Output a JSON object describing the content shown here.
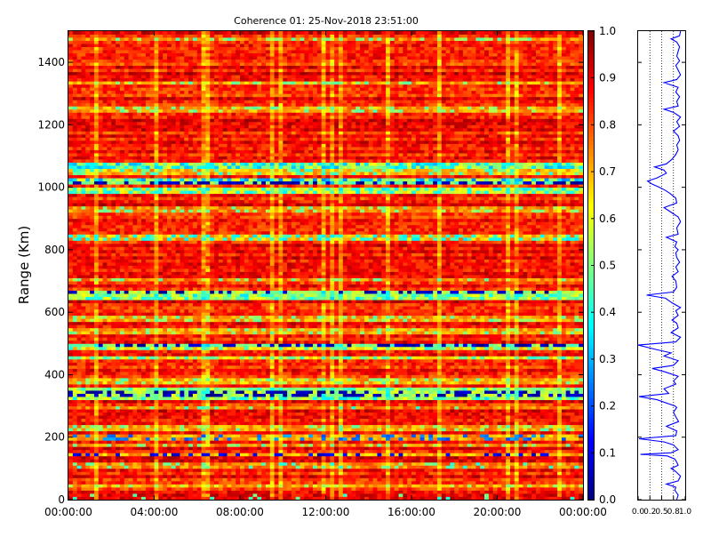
{
  "chart_data": [
    {
      "type": "heatmap",
      "title": "Coherence 01: 25-Nov-2018 23:51:00",
      "xlabel": "",
      "ylabel": "Range (Km)",
      "x_tick_labels": [
        "00:00:00",
        "04:00:00",
        "08:00:00",
        "12:00:00",
        "16:00:00",
        "20:00:00",
        "00:00:00"
      ],
      "xlim": [
        "00:00:00",
        "00:00:00"
      ],
      "ylim": [
        0,
        1500
      ],
      "y_ticks": [
        0,
        200,
        400,
        600,
        800,
        1000,
        1200,
        1400
      ],
      "colorbar": {
        "colormap": "jet",
        "range": [
          0.0,
          1.0
        ],
        "ticks": [
          "0.0",
          "0.1",
          "0.2",
          "0.3",
          "0.4",
          "0.5",
          "0.6",
          "0.7",
          "0.8",
          "0.9",
          "1.0"
        ]
      },
      "grid": false,
      "bands": [
        {
          "range": [
            0,
            15
          ],
          "base": 0.9,
          "dip": 0.45,
          "dip_rate": 0.05
        },
        {
          "range": [
            40,
            50
          ],
          "base": 0.72,
          "dip": 0.55,
          "dip_rate": 0.2
        },
        {
          "range": [
            100,
            115
          ],
          "base": 0.75,
          "dip": 0.45,
          "dip_rate": 0.15
        },
        {
          "range": [
            140,
            150
          ],
          "base": 0.7,
          "dip": 0.1,
          "dip_rate": 0.35
        },
        {
          "range": [
            170,
            180
          ],
          "base": 0.75,
          "dip": 0.5,
          "dip_rate": 0.2
        },
        {
          "range": [
            190,
            205
          ],
          "base": 0.72,
          "dip": 0.25,
          "dip_rate": 0.25
        },
        {
          "range": [
            225,
            235
          ],
          "base": 0.72,
          "dip": 0.5,
          "dip_rate": 0.2
        },
        {
          "range": [
            290,
            300
          ],
          "base": 0.75,
          "dip": 0.45,
          "dip_rate": 0.2
        },
        {
          "range": [
            320,
            330
          ],
          "base": 0.55,
          "dip": 0.4,
          "dip_rate": 0.3
        },
        {
          "range": [
            330,
            345
          ],
          "base": 0.55,
          "dip": 0.05,
          "dip_rate": 0.4
        },
        {
          "range": [
            345,
            355
          ],
          "base": 0.55,
          "dip": 0.45,
          "dip_rate": 0.3
        },
        {
          "range": [
            375,
            385
          ],
          "base": 0.7,
          "dip": 0.5,
          "dip_rate": 0.2
        },
        {
          "range": [
            450,
            460
          ],
          "base": 0.65,
          "dip": 0.45,
          "dip_rate": 0.3
        },
        {
          "range": [
            480,
            490
          ],
          "base": 0.65,
          "dip": 0.45,
          "dip_rate": 0.3
        },
        {
          "range": [
            490,
            500
          ],
          "base": 0.5,
          "dip": 0.05,
          "dip_rate": 0.45
        },
        {
          "range": [
            535,
            545
          ],
          "base": 0.72,
          "dip": 0.5,
          "dip_rate": 0.2
        },
        {
          "range": [
            575,
            585
          ],
          "base": 0.72,
          "dip": 0.5,
          "dip_rate": 0.2
        },
        {
          "range": [
            645,
            655
          ],
          "base": 0.55,
          "dip": 0.4,
          "dip_rate": 0.3
        },
        {
          "range": [
            655,
            665
          ],
          "base": 0.55,
          "dip": 0.05,
          "dip_rate": 0.4
        },
        {
          "range": [
            700,
            710
          ],
          "base": 0.75,
          "dip": 0.5,
          "dip_rate": 0.2
        },
        {
          "range": [
            835,
            845
          ],
          "base": 0.7,
          "dip": 0.4,
          "dip_rate": 0.35
        },
        {
          "range": [
            925,
            935
          ],
          "base": 0.75,
          "dip": 0.5,
          "dip_rate": 0.2
        },
        {
          "range": [
            985,
            1000
          ],
          "base": 0.6,
          "dip": 0.4,
          "dip_rate": 0.35
        },
        {
          "range": [
            1010,
            1020
          ],
          "base": 0.5,
          "dip": 0.05,
          "dip_rate": 0.5
        },
        {
          "range": [
            1020,
            1030
          ],
          "base": 0.55,
          "dip": 0.3,
          "dip_rate": 0.4
        },
        {
          "range": [
            1040,
            1060
          ],
          "base": 0.7,
          "dip": 0.45,
          "dip_rate": 0.25
        },
        {
          "range": [
            1065,
            1075
          ],
          "base": 0.55,
          "dip": 0.35,
          "dip_rate": 0.4
        },
        {
          "range": [
            1245,
            1255
          ],
          "base": 0.72,
          "dip": 0.5,
          "dip_rate": 0.2
        },
        {
          "range": [
            1330,
            1340
          ],
          "base": 0.72,
          "dip": 0.5,
          "dip_rate": 0.2
        },
        {
          "range": [
            1470,
            1480
          ],
          "base": 0.75,
          "dip": 0.5,
          "dip_rate": 0.2
        }
      ],
      "background_level": 0.85
    },
    {
      "type": "line",
      "title": "",
      "xlabel": "",
      "ylabel": "",
      "orientation": "vertical",
      "x_tick_labels": [
        "0.0",
        "0.2",
        "0.5",
        "0.8",
        "1.0"
      ],
      "x_ticks": [
        0.0,
        0.25,
        0.5,
        0.75,
        1.0
      ],
      "xlim": [
        0,
        1
      ],
      "ylim": [
        0,
        1500
      ],
      "y_ticks": [
        0,
        200,
        400,
        600,
        800,
        1000,
        1200,
        1400
      ],
      "dotted_gridlines_x": [
        0.25,
        0.5,
        0.75
      ],
      "line_color": "#0000ff",
      "series": [
        {
          "values": [
            [
              0,
              0.82
            ],
            [
              15,
              0.85
            ],
            [
              30,
              0.78
            ],
            [
              40,
              0.8
            ],
            [
              50,
              0.6
            ],
            [
              60,
              0.85
            ],
            [
              75,
              0.9
            ],
            [
              90,
              0.8
            ],
            [
              100,
              0.7
            ],
            [
              110,
              0.85
            ],
            [
              120,
              0.82
            ],
            [
              130,
              0.78
            ],
            [
              140,
              0.62
            ],
            [
              145,
              0.05
            ],
            [
              150,
              0.7
            ],
            [
              160,
              0.85
            ],
            [
              175,
              0.75
            ],
            [
              185,
              0.55
            ],
            [
              195,
              0.02
            ],
            [
              205,
              0.8
            ],
            [
              220,
              0.82
            ],
            [
              235,
              0.6
            ],
            [
              250,
              0.86
            ],
            [
              265,
              0.8
            ],
            [
              280,
              0.75
            ],
            [
              295,
              0.82
            ],
            [
              300,
              0.78
            ],
            [
              320,
              0.4
            ],
            [
              330,
              0.02
            ],
            [
              340,
              0.65
            ],
            [
              355,
              0.55
            ],
            [
              370,
              0.8
            ],
            [
              380,
              0.75
            ],
            [
              395,
              0.85
            ],
            [
              410,
              0.55
            ],
            [
              420,
              0.3
            ],
            [
              430,
              0.75
            ],
            [
              445,
              0.85
            ],
            [
              460,
              0.55
            ],
            [
              470,
              0.7
            ],
            [
              480,
              0.4
            ],
            [
              495,
              0.0
            ],
            [
              505,
              0.8
            ],
            [
              520,
              0.9
            ],
            [
              535,
              0.7
            ],
            [
              550,
              0.85
            ],
            [
              565,
              0.82
            ],
            [
              575,
              0.72
            ],
            [
              590,
              0.85
            ],
            [
              605,
              0.8
            ],
            [
              615,
              0.9
            ],
            [
              630,
              0.72
            ],
            [
              645,
              0.58
            ],
            [
              655,
              0.18
            ],
            [
              665,
              0.75
            ],
            [
              680,
              0.82
            ],
            [
              700,
              0.8
            ],
            [
              715,
              0.72
            ],
            [
              730,
              0.85
            ],
            [
              745,
              0.8
            ],
            [
              760,
              0.88
            ],
            [
              775,
              0.82
            ],
            [
              790,
              0.8
            ],
            [
              800,
              0.85
            ],
            [
              810,
              0.78
            ],
            [
              825,
              0.82
            ],
            [
              840,
              0.6
            ],
            [
              850,
              0.85
            ],
            [
              870,
              0.82
            ],
            [
              890,
              0.9
            ],
            [
              905,
              0.85
            ],
            [
              920,
              0.7
            ],
            [
              935,
              0.55
            ],
            [
              950,
              0.82
            ],
            [
              965,
              0.8
            ],
            [
              980,
              0.68
            ],
            [
              990,
              0.58
            ],
            [
              1000,
              0.45
            ],
            [
              1010,
              0.3
            ],
            [
              1020,
              0.2
            ],
            [
              1030,
              0.4
            ],
            [
              1045,
              0.6
            ],
            [
              1055,
              0.55
            ],
            [
              1065,
              0.35
            ],
            [
              1075,
              0.6
            ],
            [
              1090,
              0.72
            ],
            [
              1105,
              0.8
            ],
            [
              1120,
              0.85
            ],
            [
              1135,
              0.82
            ],
            [
              1150,
              0.88
            ],
            [
              1165,
              0.85
            ],
            [
              1180,
              0.75
            ],
            [
              1195,
              0.88
            ],
            [
              1210,
              0.82
            ],
            [
              1225,
              0.9
            ],
            [
              1240,
              0.75
            ],
            [
              1250,
              0.55
            ],
            [
              1260,
              0.85
            ],
            [
              1275,
              0.82
            ],
            [
              1290,
              0.88
            ],
            [
              1305,
              0.8
            ],
            [
              1320,
              0.85
            ],
            [
              1335,
              0.55
            ],
            [
              1345,
              0.82
            ],
            [
              1360,
              0.9
            ],
            [
              1375,
              0.85
            ],
            [
              1390,
              0.8
            ],
            [
              1405,
              0.88
            ],
            [
              1420,
              0.82
            ],
            [
              1435,
              0.85
            ],
            [
              1450,
              0.88
            ],
            [
              1465,
              0.82
            ],
            [
              1475,
              0.7
            ],
            [
              1485,
              0.88
            ],
            [
              1500,
              0.9
            ]
          ]
        }
      ]
    }
  ]
}
